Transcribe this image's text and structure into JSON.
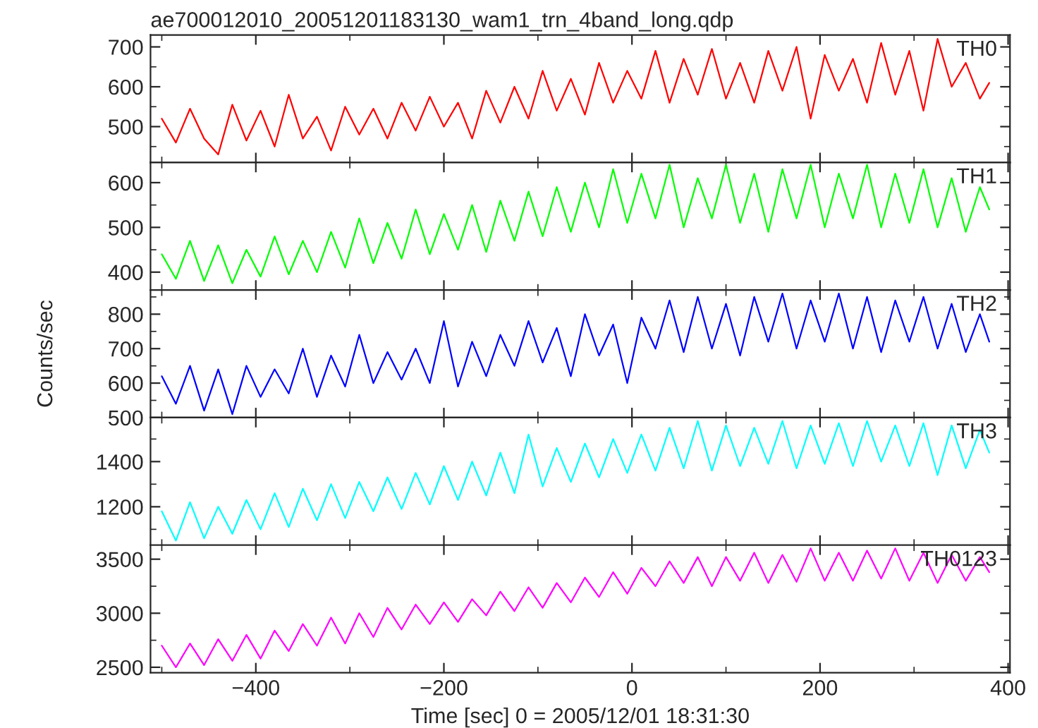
{
  "chart_data": [
    {
      "type": "line",
      "title": "ae700012010_20051201183130_wam1_trn_4band_long.qdp",
      "tick_labels": "y",
      "xlim": [
        -512,
        402
      ],
      "xticks": [
        -400,
        -200,
        0,
        200,
        400
      ],
      "ylim": [
        410,
        730
      ],
      "yticks": [
        500,
        600,
        700
      ],
      "grid": false,
      "legend": false,
      "x": [
        -500,
        -485,
        -470,
        -455,
        -440,
        -425,
        -410,
        -395,
        -380,
        -365,
        -350,
        -335,
        -320,
        -305,
        -290,
        -275,
        -260,
        -245,
        -230,
        -215,
        -200,
        -185,
        -170,
        -155,
        -140,
        -125,
        -110,
        -95,
        -80,
        -65,
        -50,
        -35,
        -20,
        -5,
        10,
        25,
        40,
        55,
        70,
        85,
        100,
        115,
        130,
        145,
        160,
        175,
        190,
        205,
        220,
        235,
        250,
        265,
        280,
        295,
        310,
        325,
        340,
        355,
        370,
        380
      ],
      "series": [
        {
          "name": "TH0",
          "color": "#ff0000",
          "values": [
            520,
            460,
            545,
            470,
            430,
            555,
            465,
            540,
            450,
            580,
            470,
            525,
            440,
            550,
            480,
            545,
            470,
            560,
            490,
            575,
            500,
            560,
            470,
            590,
            510,
            600,
            520,
            640,
            540,
            620,
            530,
            660,
            560,
            640,
            570,
            690,
            560,
            670,
            580,
            695,
            570,
            660,
            560,
            690,
            590,
            700,
            520,
            680,
            590,
            670,
            560,
            710,
            580,
            690,
            540,
            720,
            600,
            660,
            570,
            610
          ]
        }
      ]
    },
    {
      "type": "line",
      "tick_labels": "y",
      "xlim": [
        -512,
        402
      ],
      "xticks": [
        -400,
        -200,
        0,
        200,
        400
      ],
      "ylim": [
        360,
        645
      ],
      "yticks": [
        400,
        500,
        600
      ],
      "grid": false,
      "legend": false,
      "x": [
        -500,
        -485,
        -470,
        -455,
        -440,
        -425,
        -410,
        -395,
        -380,
        -365,
        -350,
        -335,
        -320,
        -305,
        -290,
        -275,
        -260,
        -245,
        -230,
        -215,
        -200,
        -185,
        -170,
        -155,
        -140,
        -125,
        -110,
        -95,
        -80,
        -65,
        -50,
        -35,
        -20,
        -5,
        10,
        25,
        40,
        55,
        70,
        85,
        100,
        115,
        130,
        145,
        160,
        175,
        190,
        205,
        220,
        235,
        250,
        265,
        280,
        295,
        310,
        325,
        340,
        355,
        370,
        380
      ],
      "series": [
        {
          "name": "TH1",
          "color": "#00ff00",
          "values": [
            440,
            385,
            470,
            380,
            460,
            375,
            450,
            390,
            480,
            395,
            470,
            400,
            490,
            410,
            520,
            420,
            510,
            430,
            540,
            440,
            530,
            450,
            550,
            445,
            560,
            470,
            580,
            480,
            590,
            490,
            600,
            500,
            630,
            510,
            620,
            520,
            640,
            500,
            610,
            520,
            640,
            510,
            620,
            490,
            630,
            520,
            640,
            500,
            620,
            520,
            640,
            500,
            620,
            510,
            630,
            500,
            610,
            490,
            590,
            540
          ]
        }
      ]
    },
    {
      "type": "line",
      "ylabel": "Counts/sec",
      "tick_labels": "y",
      "xlim": [
        -512,
        402
      ],
      "xticks": [
        -400,
        -200,
        0,
        200,
        400
      ],
      "ylim": [
        500,
        870
      ],
      "yticks": [
        500,
        600,
        700,
        800
      ],
      "grid": false,
      "legend": false,
      "x": [
        -500,
        -485,
        -470,
        -455,
        -440,
        -425,
        -410,
        -395,
        -380,
        -365,
        -350,
        -335,
        -320,
        -305,
        -290,
        -275,
        -260,
        -245,
        -230,
        -215,
        -200,
        -185,
        -170,
        -155,
        -140,
        -125,
        -110,
        -95,
        -80,
        -65,
        -50,
        -35,
        -20,
        -5,
        10,
        25,
        40,
        55,
        70,
        85,
        100,
        115,
        130,
        145,
        160,
        175,
        190,
        205,
        220,
        235,
        250,
        265,
        280,
        295,
        310,
        325,
        340,
        355,
        370,
        380
      ],
      "series": [
        {
          "name": "TH2",
          "color": "#0000ff",
          "values": [
            620,
            540,
            650,
            520,
            640,
            510,
            650,
            560,
            640,
            570,
            700,
            560,
            680,
            590,
            740,
            600,
            690,
            610,
            700,
            600,
            780,
            590,
            720,
            620,
            740,
            650,
            780,
            660,
            760,
            620,
            800,
            680,
            770,
            600,
            790,
            700,
            840,
            690,
            850,
            700,
            830,
            680,
            850,
            720,
            860,
            700,
            840,
            720,
            860,
            700,
            850,
            690,
            840,
            720,
            850,
            700,
            830,
            690,
            800,
            720
          ]
        }
      ]
    },
    {
      "type": "line",
      "tick_labels": "y",
      "xlim": [
        -512,
        402
      ],
      "xticks": [
        -400,
        -200,
        0,
        200,
        400
      ],
      "ylim": [
        1030,
        1595
      ],
      "yticks": [
        1200,
        1400
      ],
      "grid": false,
      "legend": false,
      "x": [
        -500,
        -485,
        -470,
        -455,
        -440,
        -425,
        -410,
        -395,
        -380,
        -365,
        -350,
        -335,
        -320,
        -305,
        -290,
        -275,
        -260,
        -245,
        -230,
        -215,
        -200,
        -185,
        -170,
        -155,
        -140,
        -125,
        -110,
        -95,
        -80,
        -65,
        -50,
        -35,
        -20,
        -5,
        10,
        25,
        40,
        55,
        70,
        85,
        100,
        115,
        130,
        145,
        160,
        175,
        190,
        205,
        220,
        235,
        250,
        265,
        280,
        295,
        310,
        325,
        340,
        355,
        370,
        380
      ],
      "series": [
        {
          "name": "TH3",
          "color": "#00ffff",
          "values": [
            1180,
            1050,
            1220,
            1060,
            1200,
            1080,
            1230,
            1100,
            1260,
            1110,
            1280,
            1140,
            1300,
            1150,
            1310,
            1180,
            1330,
            1190,
            1350,
            1210,
            1380,
            1230,
            1400,
            1250,
            1440,
            1260,
            1520,
            1290,
            1460,
            1310,
            1480,
            1330,
            1500,
            1350,
            1520,
            1360,
            1550,
            1370,
            1580,
            1360,
            1560,
            1380,
            1550,
            1390,
            1580,
            1370,
            1560,
            1390,
            1570,
            1380,
            1580,
            1400,
            1560,
            1380,
            1570,
            1340,
            1560,
            1370,
            1540,
            1440
          ]
        }
      ]
    },
    {
      "type": "line",
      "xlabel": "Time [sec] 0 = 2005/12/01 18:31:30",
      "xlim": [
        -512,
        402
      ],
      "xticks": [
        {
          "value": -400,
          "label": "−400"
        },
        {
          "value": -200,
          "label": "−200"
        },
        0,
        200,
        400
      ],
      "ylim": [
        2450,
        3630
      ],
      "yticks": [
        2500,
        3000,
        3500
      ],
      "grid": false,
      "legend": false,
      "x": [
        -500,
        -485,
        -470,
        -455,
        -440,
        -425,
        -410,
        -395,
        -380,
        -365,
        -350,
        -335,
        -320,
        -305,
        -290,
        -275,
        -260,
        -245,
        -230,
        -215,
        -200,
        -185,
        -170,
        -155,
        -140,
        -125,
        -110,
        -95,
        -80,
        -65,
        -50,
        -35,
        -20,
        -5,
        10,
        25,
        40,
        55,
        70,
        85,
        100,
        115,
        130,
        145,
        160,
        175,
        190,
        205,
        220,
        235,
        250,
        265,
        280,
        295,
        310,
        325,
        340,
        355,
        370,
        380
      ],
      "series": [
        {
          "name": "TH0123",
          "color": "#ff00ff",
          "values": [
            2700,
            2500,
            2720,
            2520,
            2760,
            2560,
            2800,
            2580,
            2840,
            2650,
            2900,
            2700,
            2960,
            2720,
            3000,
            2780,
            3050,
            2850,
            3080,
            2900,
            3100,
            2920,
            3130,
            2980,
            3200,
            3020,
            3240,
            3050,
            3280,
            3100,
            3330,
            3150,
            3380,
            3180,
            3420,
            3250,
            3480,
            3280,
            3520,
            3250,
            3520,
            3300,
            3560,
            3280,
            3540,
            3290,
            3600,
            3300,
            3560,
            3300,
            3580,
            3320,
            3600,
            3300,
            3560,
            3280,
            3540,
            3300,
            3520,
            3380
          ]
        }
      ]
    }
  ]
}
